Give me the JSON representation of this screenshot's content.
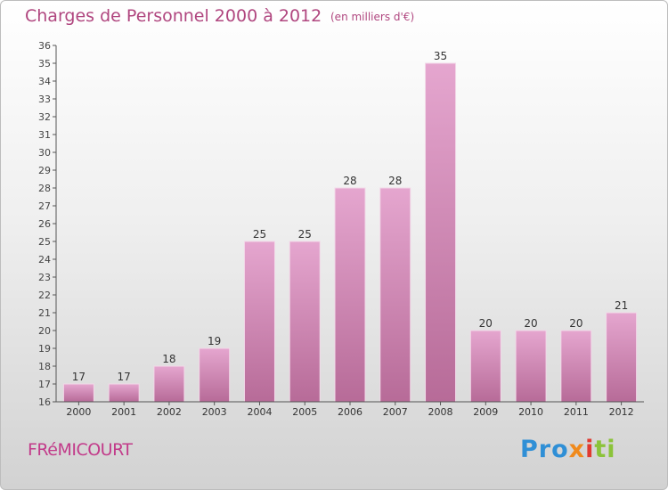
{
  "header": {
    "title": "Charges de Personnel 2000 à 2012",
    "subtitle": "(en milliers d'€)"
  },
  "footer": {
    "commune": "FRéMICOURT",
    "logo": {
      "p1": "Pro",
      "p2": "x",
      "p3": "i",
      "p4": "ti"
    }
  },
  "colors": {
    "bar": "#c978aa",
    "title": "#b0467f",
    "commune": "#c23b8a"
  },
  "chart_data": {
    "type": "bar",
    "categories": [
      "2000",
      "2001",
      "2002",
      "2003",
      "2004",
      "2005",
      "2006",
      "2007",
      "2008",
      "2009",
      "2010",
      "2011",
      "2012"
    ],
    "values": [
      17,
      17,
      18,
      19,
      25,
      25,
      28,
      28,
      35,
      20,
      20,
      20,
      21
    ],
    "title": "Charges de Personnel 2000 à 2012",
    "subtitle": "(en milliers d'€)",
    "ylim": [
      16,
      36
    ],
    "ytick_step": 1,
    "grid": false,
    "data_labels": true
  }
}
